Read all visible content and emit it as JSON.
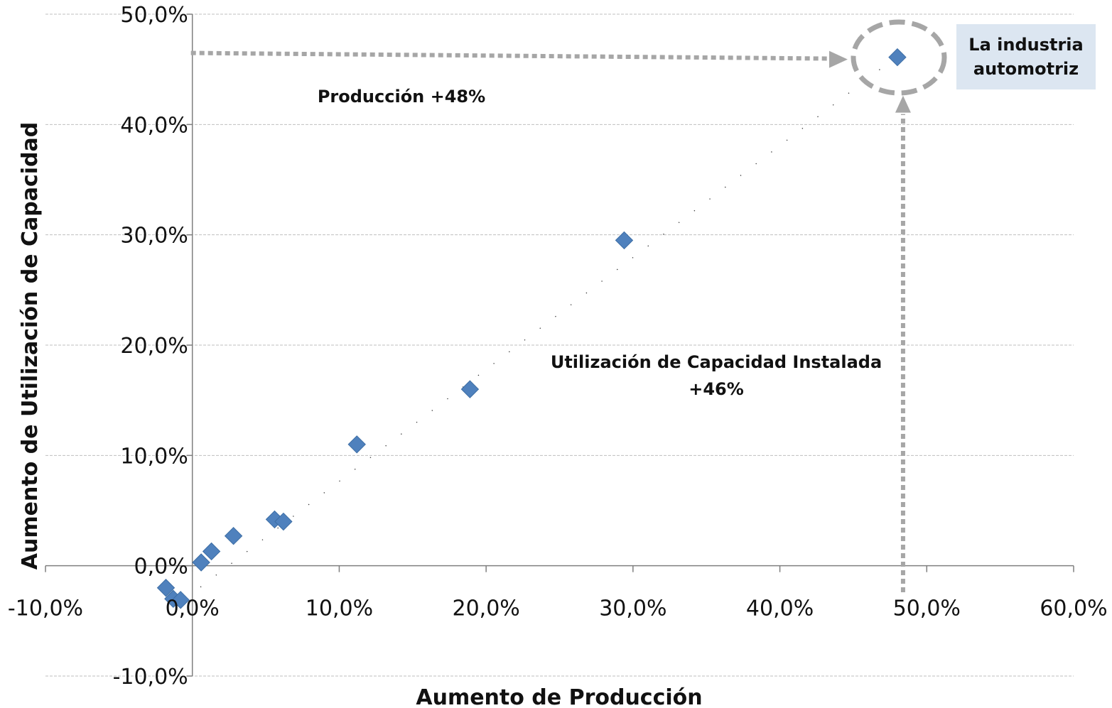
{
  "chart_data": {
    "type": "scatter",
    "xlabel": "Aumento de Producción",
    "ylabel": "Aumento de Utilización de Capacidad",
    "xlim": [
      -10,
      60
    ],
    "ylim": [
      -10,
      50
    ],
    "x_ticks": [
      "-10,0%",
      "0,0%",
      "10,0%",
      "20,0%",
      "30,0%",
      "40,0%",
      "50,0%",
      "60,0%"
    ],
    "y_ticks": [
      "50,0%",
      "40,0%",
      "30,0%",
      "20,0%",
      "10,0%",
      "0,0%",
      "-10,0%"
    ],
    "grid": "horizontal",
    "trendline": {
      "style": "dotted",
      "from": [
        -0.5,
        -3
      ],
      "to": [
        47.8,
        46
      ]
    },
    "points": [
      {
        "x": -1.8,
        "y": -2.0
      },
      {
        "x": -1.3,
        "y": -3.0
      },
      {
        "x": -0.8,
        "y": -3.1
      },
      {
        "x": 0.6,
        "y": 0.3
      },
      {
        "x": 1.3,
        "y": 1.3
      },
      {
        "x": 2.8,
        "y": 2.7
      },
      {
        "x": 5.6,
        "y": 4.2
      },
      {
        "x": 6.2,
        "y": 4.0
      },
      {
        "x": 11.2,
        "y": 11.0
      },
      {
        "x": 18.9,
        "y": 16.0
      },
      {
        "x": 29.4,
        "y": 29.5
      },
      {
        "x": 48.0,
        "y": 46.1
      }
    ],
    "annotations": {
      "produccion": "Producción +48%",
      "utilizacion_line1": "Utilización de Capacidad Instalada",
      "utilizacion_line2": "+46%",
      "callout_line1": "La industria",
      "callout_line2": "automotriz"
    },
    "colors": {
      "marker": "#4f81bd",
      "grid": "#bfbfbf",
      "arrow": "#a6a6a6",
      "callout_bg": "#dce6f1",
      "circle": "#a6a6a6"
    }
  }
}
